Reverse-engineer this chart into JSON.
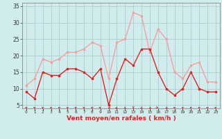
{
  "x": [
    0,
    1,
    2,
    3,
    4,
    5,
    6,
    7,
    8,
    9,
    10,
    11,
    12,
    13,
    14,
    15,
    16,
    17,
    18,
    19,
    20,
    21,
    22,
    23
  ],
  "vent_moyen": [
    9,
    7,
    15,
    14,
    14,
    16,
    16,
    15,
    13,
    16,
    5,
    13,
    19,
    17,
    22,
    22,
    15,
    10,
    8,
    10,
    15,
    10,
    9,
    9
  ],
  "rafales": [
    11,
    13,
    19,
    18,
    19,
    21,
    21,
    22,
    24,
    23,
    13,
    24,
    25,
    33,
    32,
    21,
    28,
    25,
    15,
    13,
    17,
    18,
    12,
    12
  ],
  "color_moyen": "#dd2222",
  "color_rafales": "#f5a0a0",
  "bg_color": "#d0ecec",
  "grid_color": "#aacece",
  "xlabel": "Vent moyen/en rafales ( km/h )",
  "xlabel_color": "#dd2222",
  "yticks": [
    5,
    10,
    15,
    20,
    25,
    30,
    35
  ],
  "ylim": [
    4,
    36
  ],
  "xlim": [
    -0.5,
    23.5
  ],
  "arrow_angles": [
    210,
    210,
    210,
    210,
    210,
    210,
    210,
    210,
    210,
    225,
    270,
    315,
    330,
    0,
    30,
    45,
    60,
    45,
    210,
    210,
    210,
    210,
    210,
    210
  ]
}
